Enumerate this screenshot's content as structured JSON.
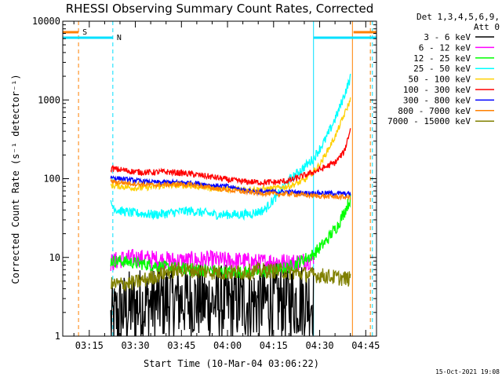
{
  "chart_data": {
    "type": "line",
    "title": "RHESSI Observing Summary Count Rates, Corrected",
    "xlabel": "Start Time (10-Mar-04 03:06:22)",
    "ylabel": "Corrected Count Rate (s⁻¹ detector⁻¹)",
    "ylog": true,
    "ylim": [
      1,
      10000
    ],
    "xlim": [
      "03:06:22",
      "04:48:30"
    ],
    "xticks": [
      "03:15",
      "03:30",
      "03:45",
      "04:00",
      "04:15",
      "04:30",
      "04:45"
    ],
    "yticks": [
      "1",
      "10",
      "100",
      "1000",
      "10000"
    ],
    "legend": {
      "header1": "Det 1,3,4,5,6,9,",
      "header2": "Att 0",
      "placement": "right"
    },
    "footer": "15-Oct-2021 19:08",
    "markers": {
      "saa": {
        "label": "S",
        "color": "#ff8000",
        "start": "03:06:22",
        "end": "03:11:30"
      },
      "saa_end": {
        "color": "#ff8000",
        "start": "04:41:00",
        "end": "04:48:30"
      },
      "night": {
        "label": "N",
        "color": "#00e0ff",
        "start": "03:06:22",
        "end": "03:22:40"
      },
      "night_end": {
        "color": "#00e0ff",
        "start": "04:28:00",
        "end": "04:48:30"
      },
      "vlines": [
        {
          "time": "03:06:22",
          "color": "#00e0ff",
          "style": "solid"
        },
        {
          "time": "03:11:30",
          "color": "#ff8000",
          "style": "dashed"
        },
        {
          "time": "03:22:40",
          "color": "#00e0ff",
          "style": "dashed"
        },
        {
          "time": "04:28:00",
          "color": "#00e0ff",
          "style": "solid"
        },
        {
          "time": "04:40:40",
          "color": "#ff8000",
          "style": "solid"
        },
        {
          "time": "04:46:30",
          "color": "#ff8000",
          "style": "dashed"
        },
        {
          "time": "04:47:10",
          "color": "#00e0ff",
          "style": "dashed"
        }
      ]
    },
    "series": [
      {
        "name": "3 - 6 keV",
        "color": "#000000",
        "x": [
          "03:22",
          "03:25",
          "03:30",
          "03:35",
          "03:40",
          "03:45",
          "03:50",
          "03:55",
          "04:00",
          "04:05",
          "04:10",
          "04:15",
          "04:20",
          "04:25",
          "04:28"
        ],
        "y": [
          1.5,
          2.0,
          2.4,
          2.6,
          2.8,
          2.9,
          2.8,
          2.7,
          2.6,
          2.7,
          2.7,
          2.8,
          2.8,
          2.9,
          2.9
        ],
        "noise": 0.5
      },
      {
        "name": "6 - 12 keV",
        "color": "#ff00ff",
        "x": [
          "03:22",
          "03:25",
          "03:30",
          "03:35",
          "03:40",
          "03:45",
          "03:50",
          "03:55",
          "04:00",
          "04:05",
          "04:10",
          "04:15",
          "04:20",
          "04:25",
          "04:28"
        ],
        "y": [
          8.5,
          9.5,
          9.8,
          9.5,
          9.2,
          9.0,
          9.2,
          9.3,
          9.0,
          9.0,
          8.5,
          9.0,
          8.5,
          9.0,
          9.5
        ],
        "noise": 0.12
      },
      {
        "name": "12 - 25 keV",
        "color": "#00ff00",
        "x": [
          "03:22",
          "03:25",
          "03:30",
          "03:35",
          "03:40",
          "03:45",
          "03:50",
          "03:55",
          "04:00",
          "04:05",
          "04:10",
          "04:15",
          "04:20",
          "04:25",
          "04:28",
          "04:32",
          "04:36",
          "04:40"
        ],
        "y": [
          9.0,
          9.0,
          8.5,
          8.0,
          7.5,
          7.2,
          7.0,
          6.8,
          6.5,
          6.5,
          6.5,
          6.8,
          7.5,
          9.5,
          11,
          16,
          26,
          55
        ],
        "noise": 0.08
      },
      {
        "name": "25 - 50 keV",
        "color": "#00ffff",
        "x": [
          "03:22",
          "03:24",
          "03:28",
          "03:32",
          "03:36",
          "03:40",
          "03:44",
          "03:48",
          "03:52",
          "03:56",
          "04:00",
          "04:04",
          "04:08",
          "04:12",
          "04:16",
          "04:20",
          "04:24",
          "04:28",
          "04:32",
          "04:36",
          "04:40"
        ],
        "y": [
          48,
          40,
          37,
          36,
          35,
          36,
          38,
          39,
          37,
          35,
          35,
          35,
          36,
          40,
          60,
          95,
          130,
          180,
          320,
          700,
          1900
        ],
        "noise": 0.06
      },
      {
        "name": "50 - 100 keV",
        "color": "#ffd000",
        "x": [
          "03:22",
          "03:25",
          "03:30",
          "03:35",
          "03:40",
          "03:45",
          "03:50",
          "03:55",
          "04:00",
          "04:05",
          "04:10",
          "04:15",
          "04:20",
          "04:25",
          "04:30",
          "04:35",
          "04:40"
        ],
        "y": [
          82,
          80,
          76,
          78,
          82,
          83,
          80,
          76,
          74,
          74,
          73,
          75,
          80,
          95,
          150,
          340,
          1000
        ],
        "noise": 0.04
      },
      {
        "name": "100 - 300 keV",
        "color": "#ff0000",
        "x": [
          "03:22",
          "03:25",
          "03:30",
          "03:35",
          "03:40",
          "03:45",
          "03:50",
          "03:55",
          "04:00",
          "04:05",
          "04:10",
          "04:15",
          "04:20",
          "04:25",
          "04:30",
          "04:35",
          "04:38",
          "04:40"
        ],
        "y": [
          135,
          130,
          122,
          120,
          122,
          118,
          112,
          105,
          97,
          92,
          90,
          90,
          94,
          110,
          130,
          160,
          220,
          430
        ],
        "noise": 0.04
      },
      {
        "name": "300 - 800 keV",
        "color": "#0000ff",
        "x": [
          "03:22",
          "03:25",
          "03:30",
          "03:35",
          "03:40",
          "03:45",
          "03:50",
          "03:55",
          "04:00",
          "04:05",
          "04:10",
          "04:15",
          "04:20",
          "04:25",
          "04:30",
          "04:35",
          "04:40"
        ],
        "y": [
          105,
          100,
          95,
          90,
          90,
          90,
          88,
          82,
          80,
          72,
          68,
          68,
          68,
          66,
          66,
          65,
          64
        ],
        "noise": 0.03
      },
      {
        "name": "800 - 7000 keV",
        "color": "#ff8000",
        "x": [
          "03:22",
          "03:25",
          "03:30",
          "03:35",
          "03:40",
          "03:45",
          "03:50",
          "03:55",
          "04:00",
          "04:05",
          "04:10",
          "04:15",
          "04:20",
          "04:25",
          "04:30",
          "04:35",
          "04:40"
        ],
        "y": [
          92,
          90,
          86,
          83,
          84,
          85,
          82,
          76,
          72,
          68,
          66,
          64,
          64,
          62,
          60,
          59,
          58
        ],
        "noise": 0.03
      },
      {
        "name": "7000 - 15000 keV",
        "color": "#808000",
        "x": [
          "03:22",
          "03:25",
          "03:30",
          "03:35",
          "03:40",
          "03:45",
          "03:50",
          "03:55",
          "04:00",
          "04:05",
          "04:10",
          "04:15",
          "04:20",
          "04:25",
          "04:28",
          "04:32",
          "04:36",
          "04:40"
        ],
        "y": [
          4.5,
          4.6,
          4.8,
          5.5,
          6.5,
          7.0,
          6.8,
          6.5,
          6.4,
          6.5,
          6.8,
          6.8,
          6.5,
          6.2,
          6.0,
          5.8,
          5.5,
          5.3
        ],
        "noise": 0.1
      }
    ]
  }
}
